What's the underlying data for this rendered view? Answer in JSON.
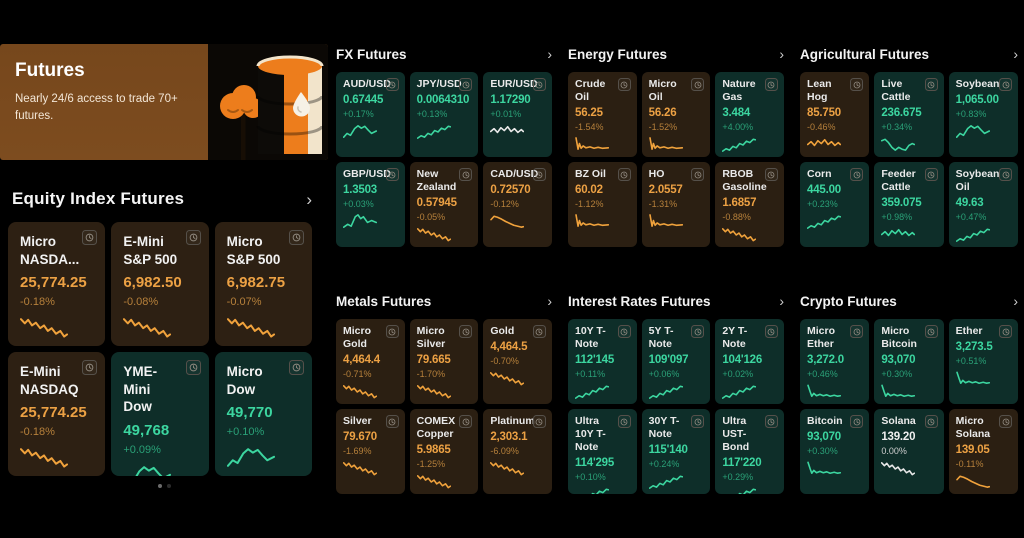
{
  "ui": {
    "chevron": "›"
  },
  "palette": {
    "up": "#3cd6a0",
    "down": "#f0a23c",
    "flat": "#e8e8e8",
    "accent_orange": "#ed7d1c",
    "banner_bg": "#7a4a1e",
    "card_up_bg": "#0e2e29",
    "card_down_bg": "#2b1f12"
  },
  "banner": {
    "title": "Futures",
    "subtitle": "Nearly 24/6 access to trade 70+ futures."
  },
  "equity": {
    "title": "Equity Index Futures",
    "cards": [
      {
        "name": "Micro NASDA...",
        "price": "25,774.25",
        "change": "-0.18%",
        "trend": "down",
        "spark": "downJagged"
      },
      {
        "name": "E-Mini S&P 500",
        "price": "6,982.50",
        "change": "-0.08%",
        "trend": "down",
        "spark": "downJagged"
      },
      {
        "name": "Micro S&P 500",
        "price": "6,982.75",
        "change": "-0.07%",
        "trend": "down",
        "spark": "downJagged"
      },
      {
        "name": "E-Mini NASDAQ",
        "price": "25,774.25",
        "change": "-0.18%",
        "trend": "down",
        "spark": "downJagged"
      },
      {
        "name": "YME-Mini Dow",
        "price": "49,768",
        "change": "+0.09%",
        "trend": "up",
        "spark": "upHump"
      },
      {
        "name": "Micro Dow",
        "price": "49,770",
        "change": "+0.10%",
        "trend": "up",
        "spark": "upHump"
      }
    ]
  },
  "sections": [
    {
      "title": "FX Futures",
      "cards": [
        {
          "name": "AUD/USD",
          "price": "0.67445",
          "change": "+0.17%",
          "trend": "up",
          "spark": "upHump"
        },
        {
          "name": "JPY/USD",
          "price": "0.0064310",
          "change": "+0.13%",
          "trend": "up",
          "spark": "upSteady"
        },
        {
          "name": "EUR/USD",
          "price": "1.17290",
          "change": "+0.01%",
          "trend": "up",
          "spark": "wavy",
          "spark_tone": "flat"
        },
        {
          "name": "GBP/USD",
          "price": "1.3503",
          "change": "+0.03%",
          "trend": "up",
          "spark": "peak"
        },
        {
          "name": "New Zealand",
          "price": "0.57945",
          "change": "-0.05%",
          "trend": "down",
          "spark": "downJagged"
        },
        {
          "name": "CAD/USD",
          "price": "0.72570",
          "change": "-0.12%",
          "trend": "down",
          "spark": "hookDown"
        }
      ]
    },
    {
      "title": "Energy Futures",
      "cards": [
        {
          "name": "Crude Oil",
          "price": "56.25",
          "change": "-1.54%",
          "trend": "down",
          "spark": "spikeDown"
        },
        {
          "name": "Micro Oil",
          "price": "56.26",
          "change": "-1.52%",
          "trend": "down",
          "spark": "spikeDown"
        },
        {
          "name": "Nature Gas",
          "price": "3.484",
          "change": "+4.00%",
          "trend": "up",
          "spark": "upSteady"
        },
        {
          "name": "BZ Oil",
          "price": "60.02",
          "change": "-1.12%",
          "trend": "down",
          "spark": "spikeDown"
        },
        {
          "name": "HO",
          "price": "2.0557",
          "change": "-1.31%",
          "trend": "down",
          "spark": "spikeDown"
        },
        {
          "name": "RBOB Gasoline",
          "price": "1.6857",
          "change": "-0.88%",
          "trend": "down",
          "spark": "downJagged"
        }
      ]
    },
    {
      "title": "Agricultural Futures",
      "cards": [
        {
          "name": "Lean Hog",
          "price": "85.750",
          "change": "-0.46%",
          "trend": "down",
          "spark": "wavy"
        },
        {
          "name": "Live Cattle",
          "price": "236.675",
          "change": "+0.34%",
          "trend": "up",
          "spark": "wavyDip"
        },
        {
          "name": "Soybean",
          "price": "1,065.00",
          "change": "+0.83%",
          "trend": "up",
          "spark": "upHump"
        },
        {
          "name": "Corn",
          "price": "445.00",
          "change": "+0.23%",
          "trend": "up",
          "spark": "upSteady"
        },
        {
          "name": "Feeder Cattle",
          "price": "359.075",
          "change": "+0.98%",
          "trend": "up",
          "spark": "wavy"
        },
        {
          "name": "Soybean Oil",
          "price": "49.63",
          "change": "+0.47%",
          "trend": "up",
          "spark": "upSteady"
        }
      ]
    },
    {
      "title": "Metals Futures",
      "cards": [
        {
          "name": "Micro Gold",
          "price": "4,464.4",
          "change": "-0.71%",
          "trend": "down",
          "spark": "downJagged"
        },
        {
          "name": "Micro Silver",
          "price": "79.665",
          "change": "-1.70%",
          "trend": "down",
          "spark": "downJagged"
        },
        {
          "name": "Gold",
          "price": "4,464.5",
          "change": "-0.70%",
          "trend": "down",
          "spark": "downJagged"
        },
        {
          "name": "Silver",
          "price": "79.670",
          "change": "-1.69%",
          "trend": "down",
          "spark": "downJagged"
        },
        {
          "name": "COMEX Copper",
          "price": "5.9865",
          "change": "-1.25%",
          "trend": "down",
          "spark": "downJagged"
        },
        {
          "name": "Platinum",
          "price": "2,303.1",
          "change": "-6.09%",
          "trend": "down",
          "spark": "downJagged"
        }
      ]
    },
    {
      "title": "Interest Rates Futures",
      "cards": [
        {
          "name": "10Y T-Note",
          "price": "112'145",
          "change": "+0.11%",
          "trend": "up",
          "spark": "upSteady"
        },
        {
          "name": "5Y T-Note",
          "price": "109'097",
          "change": "+0.06%",
          "trend": "up",
          "spark": "upSteady"
        },
        {
          "name": "2Y T-Note",
          "price": "104'126",
          "change": "+0.02%",
          "trend": "up",
          "spark": "upSteady"
        },
        {
          "name": "Ultra 10Y T-Note",
          "price": "114'295",
          "change": "+0.10%",
          "trend": "up",
          "spark": "upSteady"
        },
        {
          "name": "30Y T-Note",
          "price": "115'140",
          "change": "+0.24%",
          "trend": "up",
          "spark": "upSteady"
        },
        {
          "name": "Ultra UST-Bond",
          "price": "117'220",
          "change": "+0.29%",
          "trend": "up",
          "spark": "upSteady"
        }
      ]
    },
    {
      "title": "Crypto Futures",
      "cards": [
        {
          "name": "Micro Ether",
          "price": "3,272.0",
          "change": "+0.46%",
          "trend": "up",
          "spark": "dropWiggle"
        },
        {
          "name": "Micro Bitcoin",
          "price": "93,070",
          "change": "+0.30%",
          "trend": "up",
          "spark": "dropWiggle"
        },
        {
          "name": "Ether",
          "price": "3,273.5",
          "change": "+0.51%",
          "trend": "up",
          "spark": "dropWiggle"
        },
        {
          "name": "Bitcoin",
          "price": "93,070",
          "change": "+0.30%",
          "trend": "up",
          "spark": "dropWiggle"
        },
        {
          "name": "Solana",
          "price": "139.20",
          "change": "0.00%",
          "trend": "flat",
          "spark": "downJagged",
          "spark_tone": "flat"
        },
        {
          "name": "Micro Solana",
          "price": "139.05",
          "change": "-0.11%",
          "trend": "down",
          "spark": "hookDown"
        }
      ]
    }
  ],
  "sparklines": {
    "downJagged": "2,6 10,12 17,7 25,15 33,11 42,19 50,15 58,23 66,19 75,27 84,23 92,31 98,28",
    "spikeDown": "3,4 9,28 13,16 18,26 24,21 32,25 44,23 56,26 68,24 80,26 98,25",
    "upHump": "2,30 12,22 22,26 34,12 44,6 54,11 64,7 74,15 84,22 98,17",
    "upSteady": "2,32 12,27 22,30 32,22 42,25 52,16 62,19 72,11 82,14 92,7 98,8",
    "peak": "2,30 14,24 24,28 36,8 44,4 52,12 60,8 72,20 84,16 98,20",
    "wavy": "2,18 12,12 22,20 32,10 42,16 52,8 62,18 72,12 82,20 92,14 98,18",
    "wavyDip": "2,10 12,7 22,14 32,24 42,30 52,24 62,28 72,30 82,20 92,16 98,18",
    "dropWiggle": "3,5 9,18 14,28 20,22 28,27 38,24 48,27 58,25 68,28 80,26 90,28 98,27",
    "hookDown": "3,14 12,7 22,9 34,13 46,18 58,22 70,26 82,28 92,30 98,29"
  }
}
